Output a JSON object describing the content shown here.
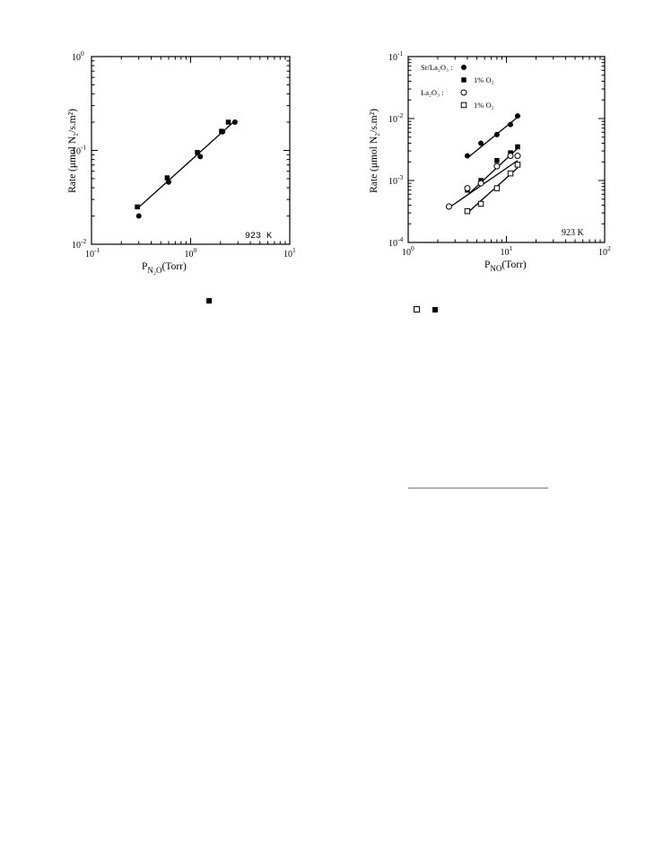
{
  "chart_data": [
    {
      "type": "scatter",
      "log_x": true,
      "log_y": true,
      "xlim": [
        0.1,
        10
      ],
      "ylim": [
        0.01,
        1
      ],
      "ylabel": "Rate (μmol N₂/s.m²)",
      "xlabel_main": "P",
      "xlabel_sub": "N₂O",
      "xlabel_unit": "(Torr)",
      "annotation": "923 K",
      "x_tick_labels": [
        {
          "base": "10",
          "exp": "-1"
        },
        {
          "base": "10",
          "exp": "0"
        },
        {
          "base": "10",
          "exp": "1"
        }
      ],
      "y_tick_labels": [
        {
          "base": "10",
          "exp": "-2"
        },
        {
          "base": "10",
          "exp": "-1"
        },
        {
          "base": "10",
          "exp": "0"
        }
      ],
      "series": [
        {
          "marker": "filled-square",
          "points": [
            [
              0.29,
              0.025
            ],
            [
              0.58,
              0.051
            ],
            [
              1.17,
              0.095
            ],
            [
              2.05,
              0.16
            ],
            [
              2.4,
              0.2
            ]
          ]
        },
        {
          "marker": "filled-circle",
          "points": [
            [
              0.3,
              0.02
            ],
            [
              0.6,
              0.046
            ],
            [
              1.25,
              0.086
            ],
            [
              2.1,
              0.158
            ],
            [
              2.8,
              0.2
            ]
          ]
        }
      ],
      "fit_lines": [
        {
          "points": [
            [
              0.29,
              0.024
            ],
            [
              2.7,
              0.2
            ]
          ]
        }
      ]
    },
    {
      "type": "scatter",
      "log_x": true,
      "log_y": true,
      "xlim": [
        1,
        100
      ],
      "ylim": [
        0.0001,
        0.1
      ],
      "ylabel": "Rate (μmol N₂/s.m²)",
      "xlabel_main": "P",
      "xlabel_sub": "NO",
      "xlabel_unit": "(Torr)",
      "annotation": "923 K",
      "x_tick_labels": [
        {
          "base": "10",
          "exp": "0"
        },
        {
          "base": "10",
          "exp": "1"
        },
        {
          "base": "10",
          "exp": "2"
        }
      ],
      "y_tick_labels": [
        {
          "base": "10",
          "exp": "-4"
        },
        {
          "base": "10",
          "exp": "-3"
        },
        {
          "base": "10",
          "exp": "-2"
        },
        {
          "base": "10",
          "exp": "-1"
        }
      ],
      "legend": {
        "group1": "Sr/La₂O₃  :",
        "group1_o2": "1% O₂",
        "group2": "La₂O₃      :",
        "group2_o2": "1% O₂"
      },
      "series": [
        {
          "marker": "filled-circle",
          "points": [
            [
              4,
              0.0025
            ],
            [
              5.5,
              0.004
            ],
            [
              8,
              0.0055
            ],
            [
              11,
              0.008
            ],
            [
              13,
              0.011
            ]
          ]
        },
        {
          "marker": "filled-square",
          "points": [
            [
              4,
              0.0007
            ],
            [
              5.5,
              0.001
            ],
            [
              8,
              0.0021
            ],
            [
              11,
              0.0028
            ],
            [
              13,
              0.0035
            ]
          ]
        },
        {
          "marker": "open-circle",
          "points": [
            [
              2.6,
              0.00038
            ],
            [
              4,
              0.00075
            ],
            [
              5.5,
              0.0009
            ],
            [
              8,
              0.0017
            ],
            [
              11,
              0.0025
            ],
            [
              13,
              0.0025
            ]
          ]
        },
        {
          "marker": "open-square",
          "points": [
            [
              4,
              0.00032
            ],
            [
              5.5,
              0.00042
            ],
            [
              8,
              0.00075
            ],
            [
              11,
              0.0013
            ],
            [
              13,
              0.0018
            ]
          ]
        }
      ],
      "fit_lines": [
        {
          "points": [
            [
              4,
              0.0023
            ],
            [
              13,
              0.0105
            ]
          ]
        },
        {
          "points": [
            [
              4.1,
              0.0006
            ],
            [
              13,
              0.0033
            ]
          ]
        },
        {
          "points": [
            [
              2.7,
              0.00038
            ],
            [
              13,
              0.0021
            ]
          ]
        },
        {
          "points": [
            [
              4.2,
              0.00032
            ],
            [
              13,
              0.0016
            ]
          ]
        }
      ]
    }
  ],
  "page_marks": {
    "left_caption_marker": "filled-square",
    "right_caption_markers": [
      "open-square",
      "filled-square"
    ]
  }
}
